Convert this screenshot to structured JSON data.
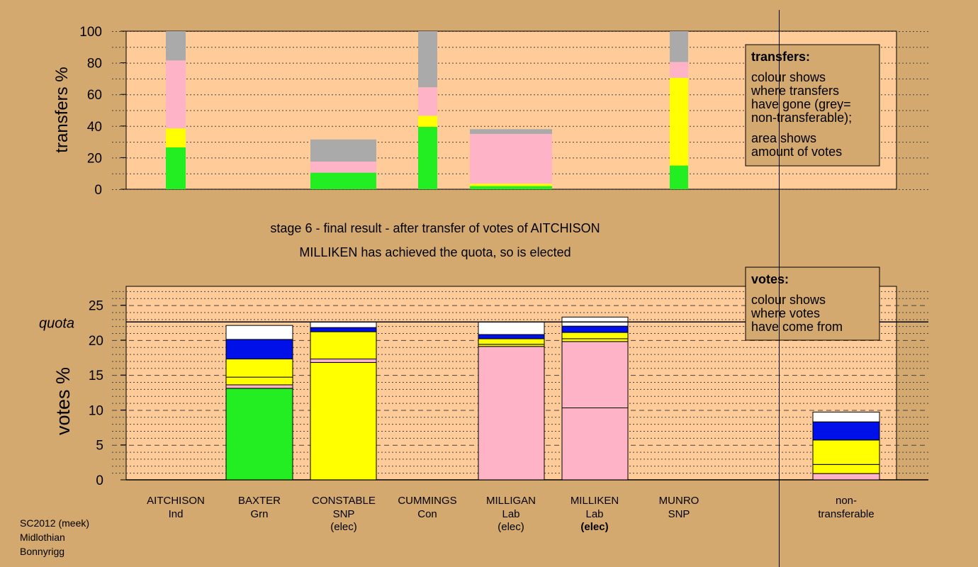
{
  "colors": {
    "background": "#d4a970",
    "plot": "#ffcc99",
    "green": "#22ee22",
    "yellow": "#ffff00",
    "pink": "#ffb3c6",
    "blue": "#0010e8",
    "grey": "#aaaaaa",
    "white": "#ffffff"
  },
  "chart_data": [
    {
      "id": "transfers",
      "type": "bar",
      "stacked": true,
      "ylabel": "transfers %",
      "ylim": [
        0,
        100
      ],
      "yticks": [
        0,
        20,
        40,
        60,
        80,
        100
      ],
      "grid": true,
      "legend": {
        "title": "transfers:",
        "lines": [
          "colour shows",
          "where transfers",
          "have gone (grey=",
          "non-transferable);",
          "area shows",
          "amount of votes"
        ],
        "placement": "top-right"
      },
      "bars": [
        {
          "name": "AITCHISON",
          "segments": [
            {
              "color": "green",
              "value": 26.5
            },
            {
              "color": "yellow",
              "value": 12
            },
            {
              "color": "pink",
              "value": 43
            },
            {
              "color": "grey",
              "value": 18.5
            }
          ]
        },
        {
          "name": "CONSTABLE",
          "segments": [
            {
              "color": "green",
              "value": 10.5
            },
            {
              "color": "pink",
              "value": 7
            },
            {
              "color": "grey",
              "value": 14
            }
          ]
        },
        {
          "name": "CUMMINGS",
          "segments": [
            {
              "color": "green",
              "value": 39.5
            },
            {
              "color": "yellow",
              "value": 7
            },
            {
              "color": "pink",
              "value": 18
            },
            {
              "color": "grey",
              "value": 35.5
            }
          ]
        },
        {
          "name": "MILLIGAN",
          "segments": [
            {
              "color": "green",
              "value": 2
            },
            {
              "color": "yellow",
              "value": 1.5
            },
            {
              "color": "pink",
              "value": 31.5
            },
            {
              "color": "grey",
              "value": 3
            }
          ]
        },
        {
          "name": "MUNRO",
          "segments": [
            {
              "color": "green",
              "value": 15
            },
            {
              "color": "yellow",
              "value": 55.5
            },
            {
              "color": "pink",
              "value": 10
            },
            {
              "color": "grey",
              "value": 19.5
            }
          ]
        }
      ]
    },
    {
      "id": "votes",
      "type": "bar",
      "stacked": true,
      "ylabel": "votes %",
      "ylim": [
        0,
        27.7
      ],
      "yticks": [
        0,
        5,
        10,
        15,
        20,
        25
      ],
      "grid": true,
      "quota": 22.6,
      "quota_label": "quota",
      "legend": {
        "title": "votes:",
        "lines": [
          "colour shows",
          "where votes",
          "have come from"
        ],
        "placement": "top-right"
      },
      "bars": [
        {
          "name": "AITCHISON",
          "party": "Ind",
          "elected": "",
          "segments": []
        },
        {
          "name": "BAXTER",
          "party": "Grn",
          "elected": "",
          "segments": [
            {
              "color": "green",
              "value": 13.1
            },
            {
              "color": "pink",
              "value": 0.5
            },
            {
              "color": "yellow",
              "value": 1.1
            },
            {
              "color": "yellow",
              "value": 2.6
            },
            {
              "color": "blue",
              "value": 2.8
            },
            {
              "color": "white",
              "value": 2.0
            }
          ]
        },
        {
          "name": "CONSTABLE",
          "party": "SNP",
          "elected": "(elec)",
          "elected_bold": false,
          "segments": [
            {
              "color": "yellow",
              "value": 16.8
            },
            {
              "color": "pink",
              "value": 0.5
            },
            {
              "color": "yellow",
              "value": 3.9
            },
            {
              "color": "blue",
              "value": 0.6
            },
            {
              "color": "white",
              "value": 0.8
            }
          ]
        },
        {
          "name": "CUMMINGS",
          "party": "Con",
          "elected": "",
          "segments": []
        },
        {
          "name": "MILLIGAN",
          "party": "Lab",
          "elected": "(elec)",
          "elected_bold": false,
          "segments": [
            {
              "color": "pink",
              "value": 19.1
            },
            {
              "color": "yellow",
              "value": 0.3
            },
            {
              "color": "yellow",
              "value": 0.8
            },
            {
              "color": "blue",
              "value": 0.6
            },
            {
              "color": "white",
              "value": 1.8
            }
          ]
        },
        {
          "name": "MILLIKEN",
          "party": "Lab",
          "elected": "(elec)",
          "elected_bold": true,
          "segments": [
            {
              "color": "pink",
              "value": 10.3
            },
            {
              "color": "pink",
              "value": 9.5
            },
            {
              "color": "yellow",
              "value": 0.4
            },
            {
              "color": "yellow",
              "value": 0.9
            },
            {
              "color": "blue",
              "value": 0.9
            },
            {
              "color": "white",
              "value": 1.3
            }
          ]
        },
        {
          "name": "MUNRO",
          "party": "SNP",
          "elected": "",
          "segments": []
        },
        {
          "name": "non-",
          "party": "transferable",
          "elected": "",
          "segments": [
            {
              "color": "pink",
              "value": 0.9
            },
            {
              "color": "yellow",
              "value": 1.3
            },
            {
              "color": "yellow",
              "value": 3.5
            },
            {
              "color": "blue",
              "value": 2.6
            },
            {
              "color": "white",
              "value": 1.4
            }
          ]
        }
      ]
    }
  ],
  "subtitle": {
    "line1": "stage 6 - final result - after transfer of votes of AITCHISON",
    "line2": "MILLIKEN has achieved the quota, so is elected"
  },
  "footer": {
    "line1": "SC2012 (meek)",
    "line2": "Midlothian",
    "line3": "Bonnyrigg"
  }
}
